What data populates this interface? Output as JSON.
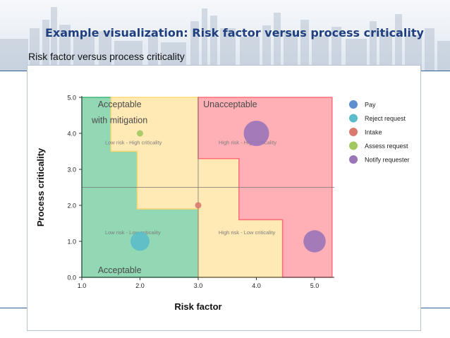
{
  "slide": {
    "title": "Example visualization: Risk factor versus process criticality"
  },
  "chart_data": {
    "type": "scatter",
    "title": "Risk factor versus process criticality",
    "xlabel": "Risk factor",
    "ylabel": "Process criticality",
    "xlim": [
      1.0,
      5.0
    ],
    "ylim": [
      0.0,
      5.0
    ],
    "xticks": [
      "1.0",
      "2.0",
      "3.0",
      "4.0",
      "5.0"
    ],
    "yticks": [
      "0.0",
      "1.0",
      "2.0",
      "3.0",
      "4.0",
      "5.0"
    ],
    "grid": false,
    "reference_lines": {
      "x": 3.0,
      "y": 2.5
    },
    "legend_position": "right",
    "zones": [
      {
        "label": "Acceptable",
        "color": "#39b878",
        "outline": [
          [
            1.0,
            0.0
          ],
          [
            1.0,
            5.0
          ],
          [
            1.5,
            5.0
          ],
          [
            1.5,
            3.5
          ],
          [
            1.95,
            3.5
          ],
          [
            1.95,
            1.9
          ],
          [
            3.0,
            1.9
          ],
          [
            3.0,
            0.0
          ]
        ]
      },
      {
        "label": "Acceptable with mitigation",
        "color": "#ffd878",
        "outline": [
          [
            1.5,
            5.0
          ],
          [
            3.0,
            5.0
          ],
          [
            3.0,
            3.3
          ],
          [
            3.7,
            3.3
          ],
          [
            3.7,
            1.6
          ],
          [
            4.45,
            1.6
          ],
          [
            4.45,
            0.0
          ],
          [
            3.0,
            0.0
          ],
          [
            3.0,
            1.9
          ],
          [
            1.95,
            1.9
          ],
          [
            1.95,
            3.5
          ],
          [
            1.5,
            3.5
          ]
        ]
      },
      {
        "label": "Unacceptable",
        "color": "#ff6e7a",
        "outline": [
          [
            3.0,
            5.0
          ],
          [
            5.3,
            5.0
          ],
          [
            5.3,
            0.0
          ],
          [
            4.45,
            0.0
          ],
          [
            4.45,
            1.6
          ],
          [
            3.7,
            1.6
          ],
          [
            3.7,
            3.3
          ],
          [
            3.0,
            3.3
          ]
        ]
      }
    ],
    "zone_labels": [
      {
        "text": "Acceptable",
        "x": 1.65,
        "y": 0.22
      },
      {
        "text": "Acceptable",
        "x": 1.65,
        "y": 4.82
      },
      {
        "text": "with mitigation",
        "x": 1.65,
        "y": 4.38
      },
      {
        "text": "Unacceptable",
        "x": 3.55,
        "y": 4.82
      }
    ],
    "quadrant_labels": [
      {
        "text": "Low risk - High criticality",
        "x": 1.4,
        "y": 3.7
      },
      {
        "text": "High risk - High criticality",
        "x": 3.35,
        "y": 3.7
      },
      {
        "text": "Low risk - Low criticality",
        "x": 1.4,
        "y": 1.2
      },
      {
        "text": "High risk - Low criticality",
        "x": 3.35,
        "y": 1.2
      }
    ],
    "series": [
      {
        "name": "Pay",
        "color": "#5b8fd0",
        "points": []
      },
      {
        "name": "Reject request",
        "color": "#5bbcc9",
        "points": [
          {
            "x": 2.0,
            "y": 1.0,
            "size": 3
          }
        ]
      },
      {
        "name": "Intake",
        "color": "#d97a6f",
        "points": [
          {
            "x": 3.0,
            "y": 2.0,
            "size": 1
          }
        ]
      },
      {
        "name": "Assess request",
        "color": "#a2c85f",
        "points": [
          {
            "x": 2.0,
            "y": 4.0,
            "size": 1
          }
        ]
      },
      {
        "name": "Notify requester",
        "color": "#9a76b8",
        "points": [
          {
            "x": 4.0,
            "y": 4.0,
            "size": 4
          },
          {
            "x": 5.0,
            "y": 1.0,
            "size": 3.5
          }
        ]
      }
    ]
  }
}
